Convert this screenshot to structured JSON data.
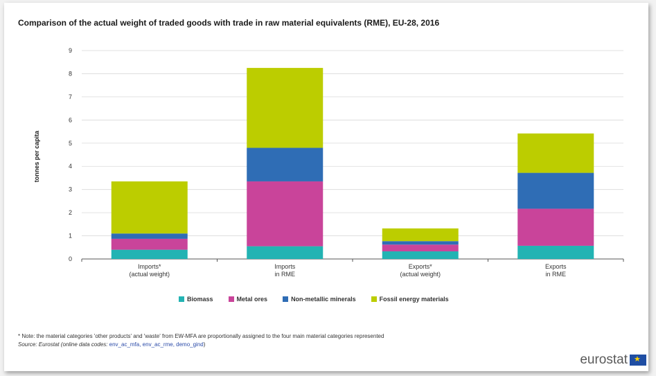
{
  "chart_data": {
    "type": "bar",
    "stacked": true,
    "title": "Comparison of the actual weight of traded goods with trade in raw material equivalents (RME), EU-28, 2016",
    "xlabel": "",
    "ylabel": "tonnes per capita",
    "ylim": [
      0,
      9
    ],
    "yticks": [
      "0",
      "1",
      "2",
      "3",
      "4",
      "5",
      "6",
      "7",
      "8",
      "9"
    ],
    "grid": true,
    "legend_position": "bottom",
    "categories": [
      [
        "Imports*",
        "(actual weight)"
      ],
      [
        "Imports",
        "in RME"
      ],
      [
        "Exports*",
        "(actual weight)"
      ],
      [
        "Exports",
        "in RME"
      ]
    ],
    "series": [
      {
        "name": "Biomass",
        "color": "#23b3b3",
        "values": [
          0.4,
          0.55,
          0.33,
          0.57
        ]
      },
      {
        "name": "Metal ores",
        "color": "#c9449a",
        "values": [
          0.47,
          2.8,
          0.29,
          1.6
        ]
      },
      {
        "name": "Non-metallic minerals",
        "color": "#2f6db5",
        "values": [
          0.23,
          1.45,
          0.15,
          1.55
        ]
      },
      {
        "name": "Fossil energy materials",
        "color": "#bccd00",
        "values": [
          2.25,
          3.45,
          0.55,
          1.7
        ]
      }
    ]
  },
  "footnote": {
    "note": "* Note: the material categories 'other products' and 'waste' from EW-MFA are proportionally assigned to the four main material categories represented",
    "source_prefix": "Source: Eurostat (online data codes: ",
    "source_codes": "env_ac_mfa, env_ac_rme, demo_gind",
    "source_suffix": ")"
  },
  "logo": {
    "text": "eurostat"
  }
}
